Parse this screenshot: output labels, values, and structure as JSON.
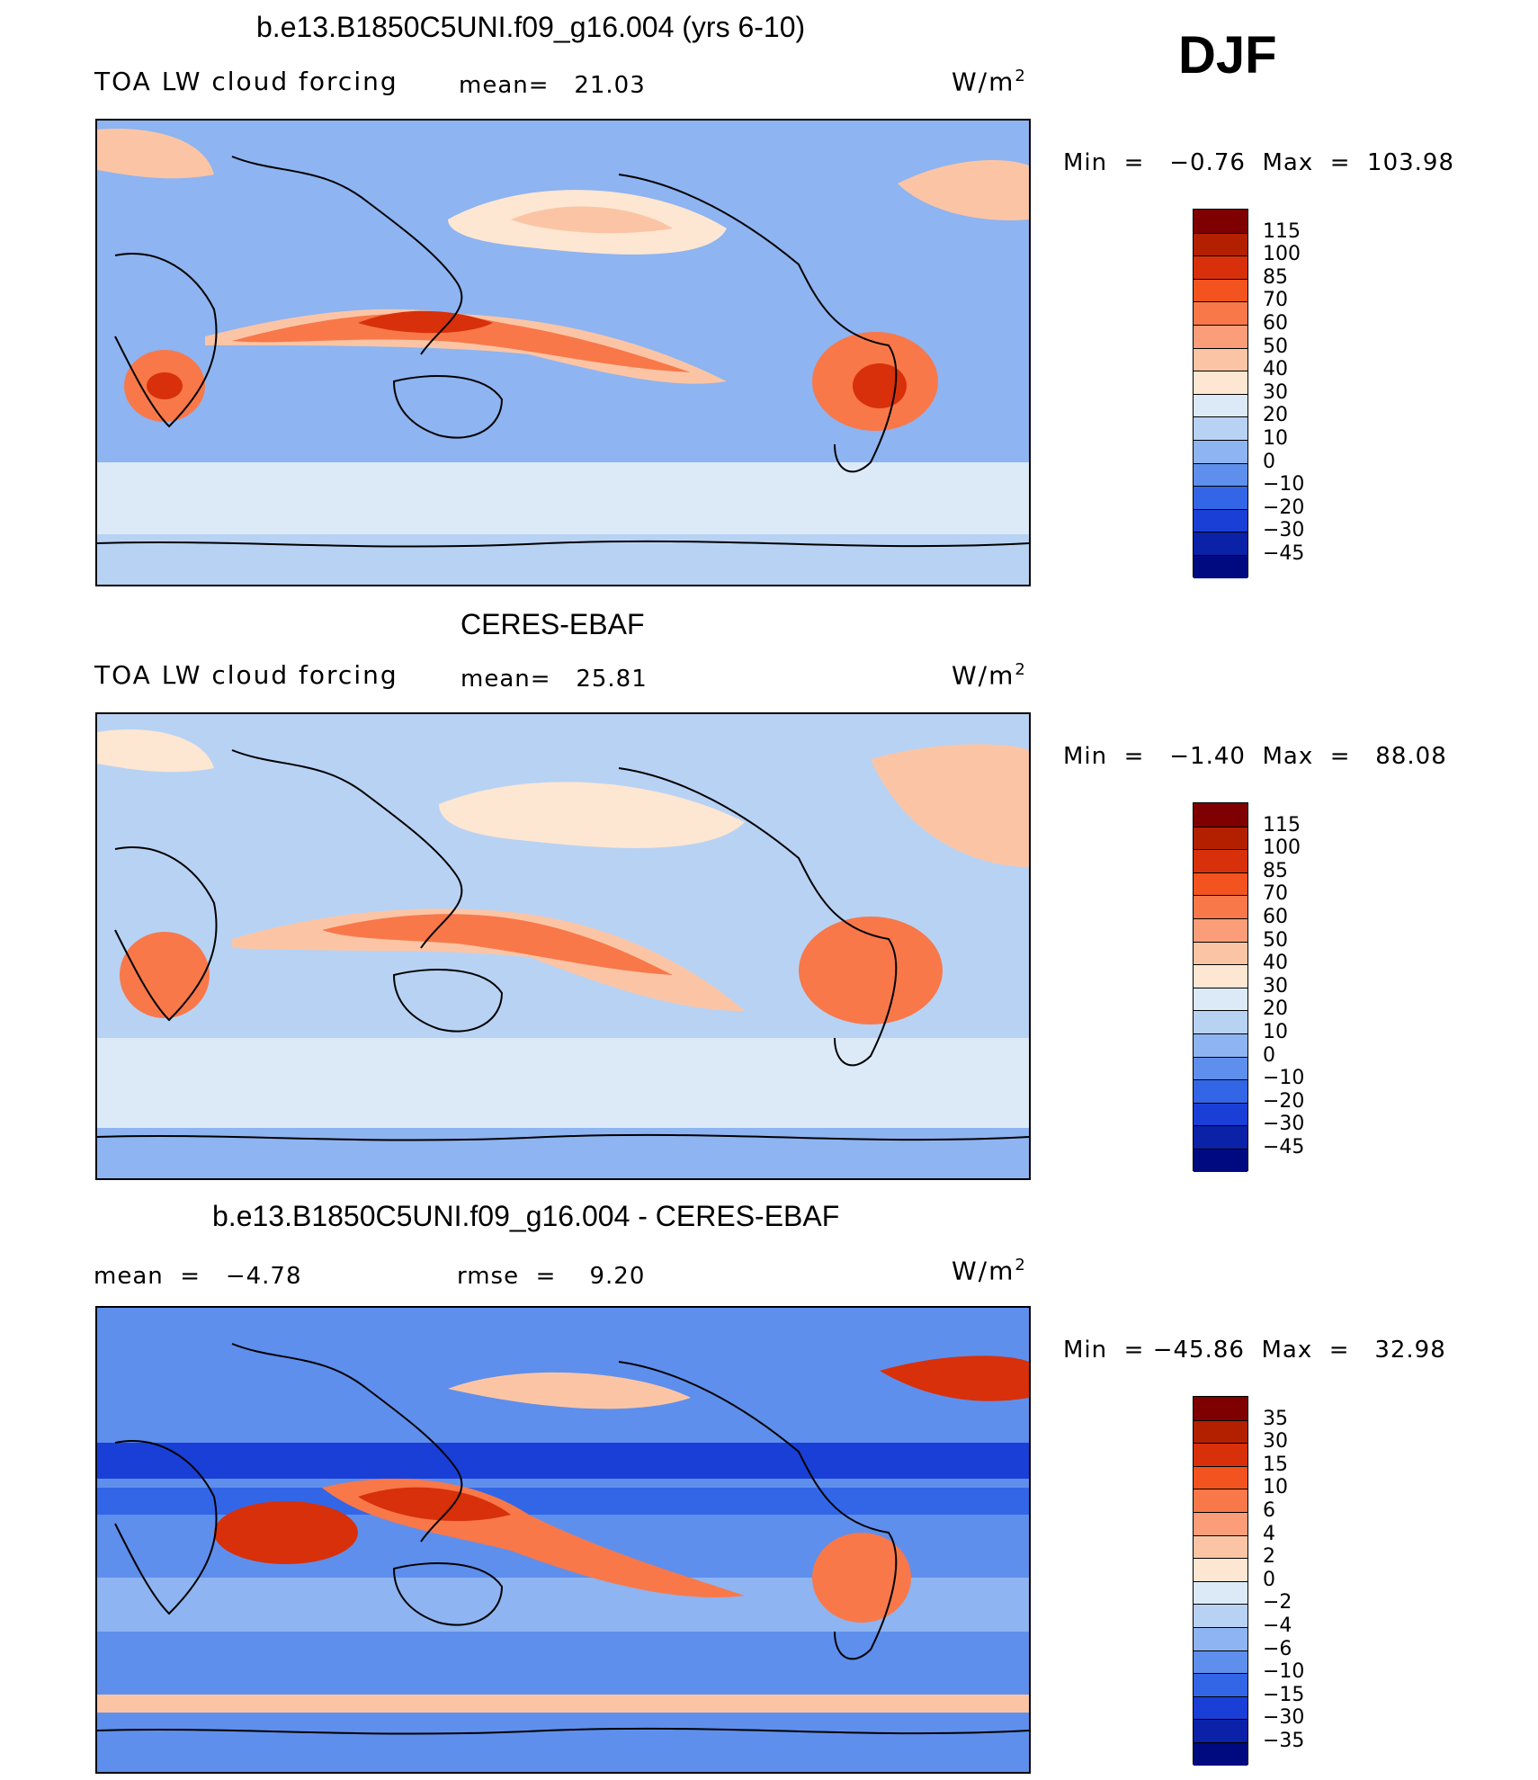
{
  "season": "DJF",
  "panels": [
    {
      "title": "b.e13.B1850C5UNI.f09_g16.004 (yrs 6-10)",
      "left_label": "TOA LW cloud forcing",
      "mid_label": "mean=   21.03",
      "units": "W/m",
      "units_sup": "2",
      "minmax": "Min  =   −0.76  Max  =  103.98",
      "colorbar": [
        "115",
        "100",
        "85",
        "70",
        "60",
        "50",
        "40",
        "30",
        "20",
        "10",
        "0",
        "−10",
        "−20",
        "−30",
        "−45"
      ]
    },
    {
      "title": "CERES-EBAF",
      "left_label": "TOA LW cloud forcing",
      "mid_label": "mean=   25.81",
      "units": "W/m",
      "units_sup": "2",
      "minmax": "Min  =   −1.40  Max  =   88.08",
      "colorbar": [
        "115",
        "100",
        "85",
        "70",
        "60",
        "50",
        "40",
        "30",
        "20",
        "10",
        "0",
        "−10",
        "−20",
        "−30",
        "−45"
      ]
    },
    {
      "title": "b.e13.B1850C5UNI.f09_g16.004 - CERES-EBAF",
      "left_label": "mean  =   −4.78",
      "mid_label": "rmse  =    9.20",
      "units": "W/m",
      "units_sup": "2",
      "minmax": "Min  = −45.86  Max  =   32.98",
      "colorbar": [
        "35",
        "30",
        "15",
        "10",
        "6",
        "4",
        "2",
        "0",
        "−2",
        "−4",
        "−6",
        "−10",
        "−15",
        "−30",
        "−35"
      ]
    }
  ],
  "colors": {
    "scale": [
      "#7f0000",
      "#b22000",
      "#d8300a",
      "#f2531f",
      "#f8784a",
      "#fa9d78",
      "#fbc5a5",
      "#fde6d2",
      "#dceaf8",
      "#b8d2f4",
      "#8eb4f1",
      "#5f8fec",
      "#3366e6",
      "#1a3fd6",
      "#0a21a8",
      "#000a80"
    ]
  }
}
